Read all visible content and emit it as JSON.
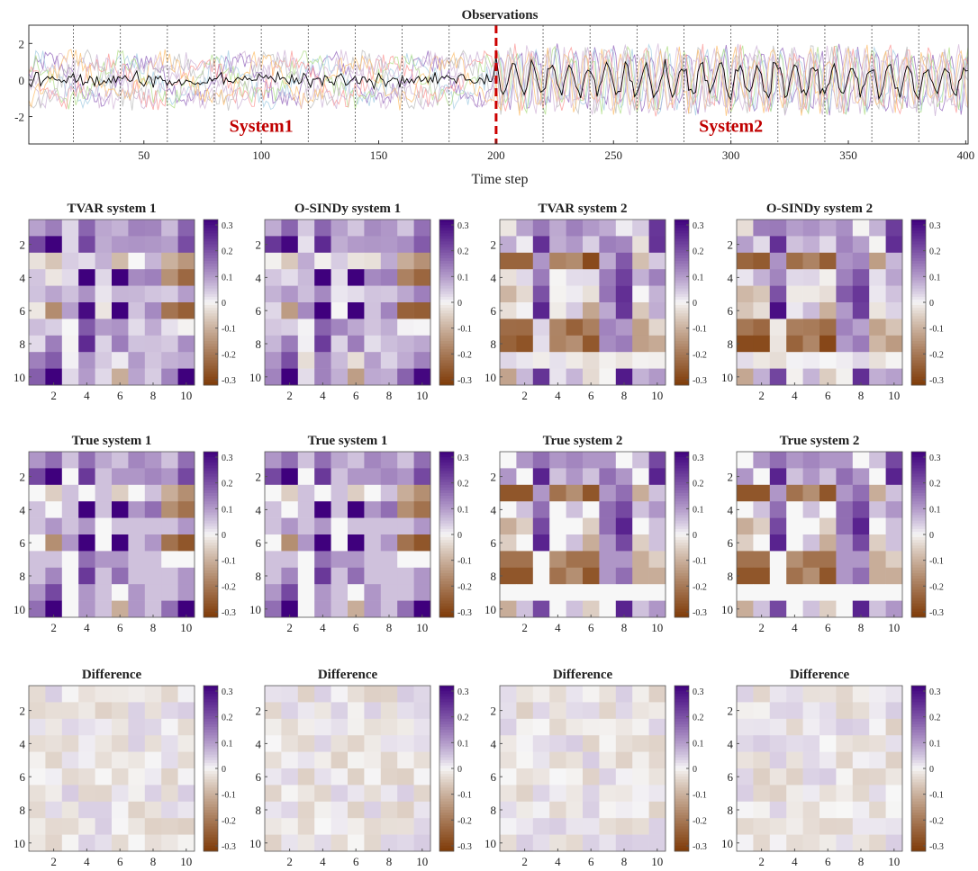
{
  "colors": {
    "series": [
      "#9467bd",
      "#a6cee3",
      "#b2df8a",
      "#fb9a99",
      "#cab2d6",
      "#bdbdbd",
      "#fdbf6f",
      "#d4b9da"
    ],
    "mean_line": "#000000",
    "switch_line": "#cc0000",
    "segment_line": "#555555",
    "cmap_pos": "#3f007d",
    "cmap_neg": "#7f3b08",
    "cmap_mid": "#f7f7f7"
  },
  "chart_data": [
    {
      "type": "line",
      "title": "Observations",
      "xlabel": "Time step",
      "ylabel": "",
      "xlim": [
        1,
        401
      ],
      "ylim": [
        -3.5,
        3
      ],
      "xticks": [
        50,
        100,
        150,
        200,
        250,
        300,
        350,
        400
      ],
      "yticks": [
        2,
        0,
        -2
      ],
      "switch_point": 200,
      "segment_boundaries": [
        20,
        40,
        60,
        80,
        100,
        120,
        140,
        160,
        180,
        220,
        240,
        260,
        280,
        300,
        320,
        340,
        360,
        380
      ],
      "annotations": [
        {
          "text": "System1",
          "x": 100,
          "y": -2.6
        },
        {
          "text": "System2",
          "x": 300,
          "y": -2.6
        }
      ],
      "series_count": 8,
      "system1_period": 40,
      "system2_period": 8
    },
    {
      "type": "heatmap",
      "grid": {
        "rows": 4,
        "cols": 4
      },
      "size": 10,
      "ticks": [
        2,
        4,
        6,
        8,
        10
      ],
      "colorbar": {
        "min": -0.3,
        "max": 0.3,
        "ticks": [
          "0.3",
          "0.2",
          "0.1",
          "0",
          "-0.1",
          "-0.2",
          "-0.3"
        ]
      },
      "system1_true": [
        [
          0.1,
          0.15,
          0.05,
          0.15,
          0.08,
          0.05,
          0.12,
          0.1,
          0.05,
          0.15
        ],
        [
          0.2,
          0.3,
          0.0,
          0.22,
          0.05,
          0.1,
          0.1,
          0.12,
          0.1,
          0.2
        ],
        [
          0.0,
          -0.05,
          0.05,
          0.0,
          0.05,
          -0.05,
          0.0,
          0.05,
          -0.1,
          -0.15
        ],
        [
          0.05,
          0.0,
          0.05,
          0.3,
          0.05,
          0.3,
          0.1,
          0.15,
          -0.15,
          -0.2
        ],
        [
          0.05,
          0.1,
          0.05,
          0.1,
          0.0,
          0.05,
          0.05,
          0.05,
          0.05,
          0.1
        ],
        [
          0.0,
          -0.15,
          0.1,
          0.3,
          0.0,
          0.3,
          0.05,
          0.1,
          -0.2,
          -0.25
        ],
        [
          0.05,
          0.05,
          0.0,
          0.15,
          0.1,
          0.1,
          0.05,
          0.05,
          0.0,
          0.0
        ],
        [
          0.05,
          0.12,
          0.0,
          0.22,
          0.05,
          0.15,
          0.05,
          0.05,
          0.05,
          0.1
        ],
        [
          0.1,
          0.2,
          0.0,
          0.1,
          0.05,
          0.0,
          0.1,
          0.05,
          0.05,
          0.1
        ],
        [
          0.15,
          0.3,
          0.0,
          0.1,
          0.05,
          -0.1,
          0.1,
          0.05,
          0.15,
          0.3
        ]
      ],
      "system2_true": [
        [
          0.0,
          0.1,
          0.15,
          0.1,
          0.12,
          0.1,
          0.1,
          0.0,
          0.05,
          0.2
        ],
        [
          0.1,
          0.0,
          0.25,
          0.05,
          0.1,
          0.05,
          0.15,
          0.1,
          0.0,
          0.25
        ],
        [
          -0.25,
          -0.25,
          0.1,
          -0.2,
          -0.15,
          -0.25,
          0.1,
          0.15,
          -0.1,
          0.05
        ],
        [
          0.0,
          0.05,
          0.15,
          0.0,
          0.05,
          0.0,
          0.15,
          0.2,
          0.05,
          0.1
        ],
        [
          -0.1,
          -0.05,
          0.2,
          0.0,
          0.0,
          -0.05,
          0.15,
          0.25,
          0.0,
          0.05
        ],
        [
          -0.05,
          0.0,
          0.25,
          0.0,
          0.05,
          -0.1,
          0.1,
          0.2,
          -0.05,
          0.05
        ],
        [
          -0.2,
          -0.2,
          0.0,
          -0.15,
          -0.2,
          -0.2,
          0.1,
          0.1,
          -0.1,
          -0.05
        ],
        [
          -0.25,
          -0.25,
          0.0,
          -0.2,
          -0.15,
          -0.25,
          0.1,
          0.15,
          -0.1,
          -0.1
        ],
        [
          0.0,
          0.0,
          0.0,
          0.0,
          0.0,
          0.0,
          0.0,
          0.0,
          0.0,
          0.0
        ],
        [
          -0.1,
          0.05,
          0.2,
          0.0,
          0.05,
          -0.05,
          0.0,
          0.25,
          0.05,
          0.1
        ]
      ],
      "panels": [
        {
          "title": "TVAR system 1",
          "kind": "estimate",
          "system": 1
        },
        {
          "title": "O-SINDy system 1",
          "kind": "estimate",
          "system": 1
        },
        {
          "title": "TVAR system 2",
          "kind": "estimate",
          "system": 2
        },
        {
          "title": "O-SINDy system 2",
          "kind": "estimate",
          "system": 2
        },
        {
          "title": "True system 1",
          "kind": "true",
          "system": 1
        },
        {
          "title": "True system 1",
          "kind": "true",
          "system": 1
        },
        {
          "title": "True system 2",
          "kind": "true",
          "system": 2
        },
        {
          "title": "True system 2",
          "kind": "true",
          "system": 2
        },
        {
          "title": "Difference",
          "kind": "difference",
          "system": 1
        },
        {
          "title": "Difference",
          "kind": "difference",
          "system": 1
        },
        {
          "title": "Difference",
          "kind": "difference",
          "system": 2
        },
        {
          "title": "Difference",
          "kind": "difference",
          "system": 2
        }
      ]
    }
  ]
}
